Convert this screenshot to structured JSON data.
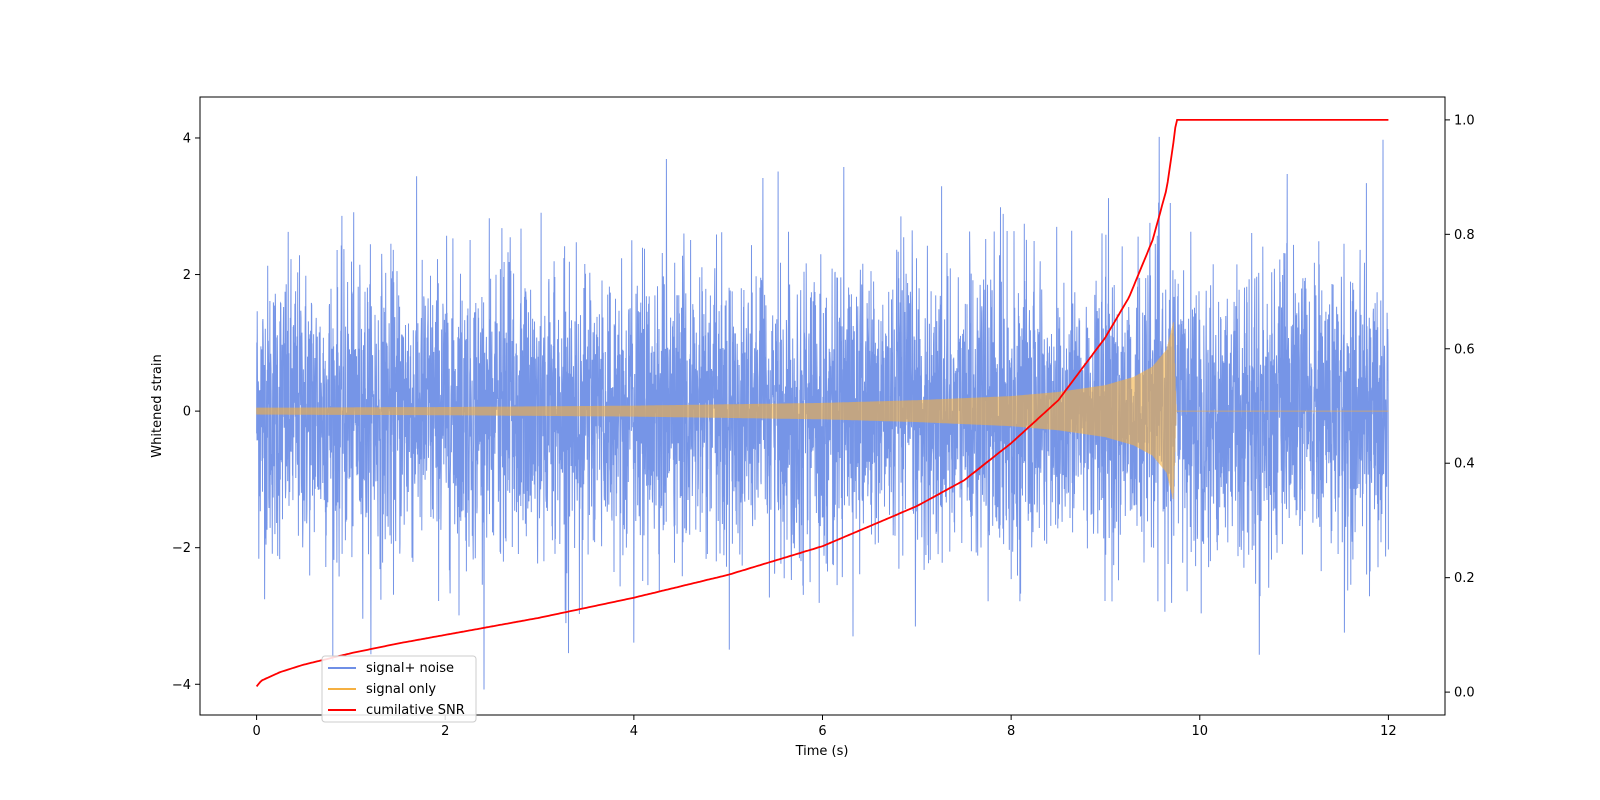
{
  "chart_data": {
    "type": "line",
    "xlabel": "Time (s)",
    "ylabel": "Whitened strain",
    "xlim": [
      -0.6,
      12.6
    ],
    "ylim": [
      -4.45,
      4.6
    ],
    "y2lim": [
      -0.04,
      1.04
    ],
    "xticks": [
      0,
      2,
      4,
      6,
      8,
      10,
      12
    ],
    "yticks": [
      -4,
      -2,
      0,
      2,
      4
    ],
    "y2ticks": [
      0.0,
      0.2,
      0.4,
      0.6,
      0.8,
      1.0
    ],
    "x_tick_labels": [
      "0",
      "2",
      "4",
      "6",
      "8",
      "10",
      "12"
    ],
    "y_tick_labels": [
      "−4",
      "−2",
      "0",
      "2",
      "4"
    ],
    "y2_tick_labels": [
      "0.0",
      "0.2",
      "0.4",
      "0.6",
      "0.8",
      "1.0"
    ],
    "legend_position": "lower-left",
    "series": [
      {
        "name": "signal+ noise",
        "color": "#6f8fe6",
        "axis": "left",
        "x_range": [
          0,
          12
        ],
        "noise_amplitude_peak": 4.2,
        "description_values": {
          "typical_band": [
            -2,
            2
          ]
        }
      },
      {
        "name": "signal only",
        "color": "#f5b041",
        "axis": "left",
        "x_range": [
          0,
          12
        ],
        "chirp_end_time": 9.75,
        "envelope": [
          {
            "x": 0.0,
            "y": 0.05
          },
          {
            "x": 2.0,
            "y": 0.06
          },
          {
            "x": 4.0,
            "y": 0.08
          },
          {
            "x": 6.0,
            "y": 0.12
          },
          {
            "x": 7.0,
            "y": 0.16
          },
          {
            "x": 8.0,
            "y": 0.22
          },
          {
            "x": 8.5,
            "y": 0.28
          },
          {
            "x": 9.0,
            "y": 0.38
          },
          {
            "x": 9.3,
            "y": 0.5
          },
          {
            "x": 9.5,
            "y": 0.65
          },
          {
            "x": 9.65,
            "y": 0.9
          },
          {
            "x": 9.72,
            "y": 1.3
          },
          {
            "x": 9.75,
            "y": 0.0
          },
          {
            "x": 12.0,
            "y": 0.0
          }
        ]
      },
      {
        "name": "cumilative SNR",
        "color": "#ff0000",
        "axis": "right",
        "points": [
          {
            "x": 0.0,
            "y": 0.01
          },
          {
            "x": 0.05,
            "y": 0.02
          },
          {
            "x": 0.25,
            "y": 0.035
          },
          {
            "x": 0.5,
            "y": 0.048
          },
          {
            "x": 1.0,
            "y": 0.068
          },
          {
            "x": 1.5,
            "y": 0.085
          },
          {
            "x": 2.0,
            "y": 0.1
          },
          {
            "x": 3.0,
            "y": 0.13
          },
          {
            "x": 4.0,
            "y": 0.165
          },
          {
            "x": 5.0,
            "y": 0.205
          },
          {
            "x": 6.0,
            "y": 0.255
          },
          {
            "x": 7.0,
            "y": 0.325
          },
          {
            "x": 7.5,
            "y": 0.37
          },
          {
            "x": 8.0,
            "y": 0.435
          },
          {
            "x": 8.5,
            "y": 0.51
          },
          {
            "x": 9.0,
            "y": 0.62
          },
          {
            "x": 9.25,
            "y": 0.69
          },
          {
            "x": 9.5,
            "y": 0.79
          },
          {
            "x": 9.65,
            "y": 0.88
          },
          {
            "x": 9.72,
            "y": 0.96
          },
          {
            "x": 9.75,
            "y": 1.0
          },
          {
            "x": 12.0,
            "y": 1.0
          }
        ]
      }
    ]
  }
}
